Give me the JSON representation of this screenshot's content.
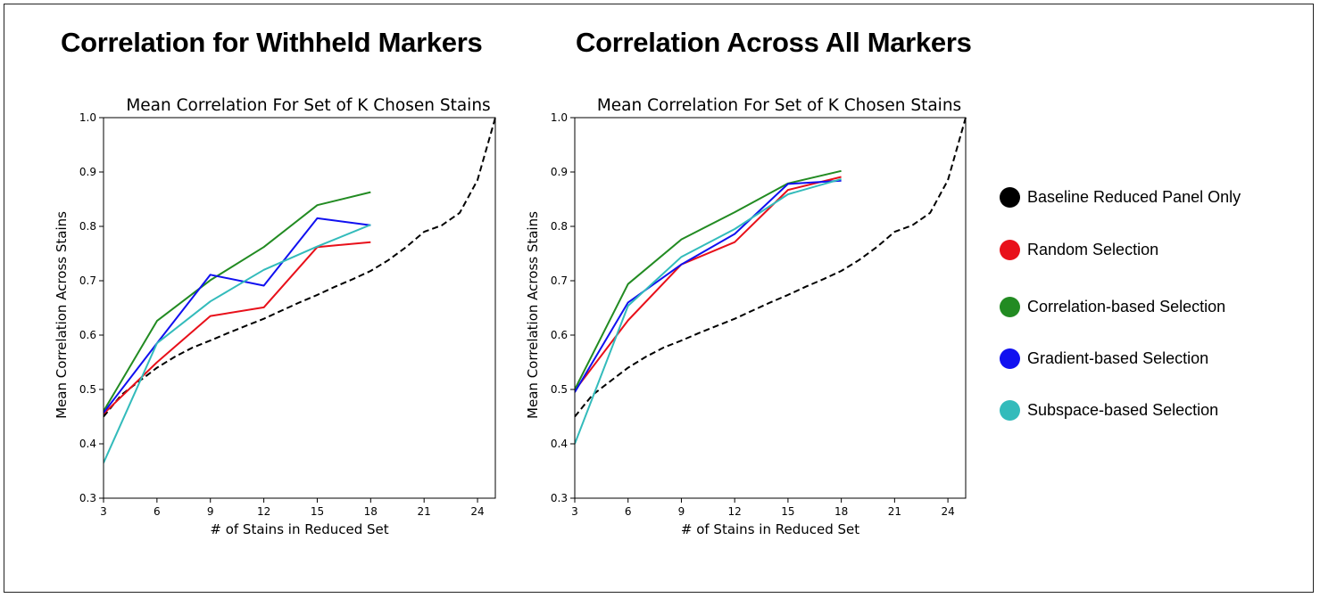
{
  "headings": {
    "left": "Correlation for Withheld Markers",
    "right": "Correlation Across All Markers"
  },
  "legend": [
    {
      "label": "Baseline Reduced Panel Only",
      "color": "#000000"
    },
    {
      "label": "Random Selection",
      "color": "#e8101a"
    },
    {
      "label": "Correlation-based Selection",
      "color": "#228b22"
    },
    {
      "label": "Gradient-based Selection",
      "color": "#1010f0"
    },
    {
      "label": "Subspace-based Selection",
      "color": "#33bbbb"
    }
  ],
  "chart_data": [
    {
      "type": "line",
      "title": "Mean Correlation For Set of K Chosen Stains",
      "xlabel": "# of Stains in Reduced Set",
      "ylabel": "Mean Correlation Across Stains",
      "xlim": [
        3,
        25
      ],
      "ylim": [
        0.3,
        1.0
      ],
      "xticks": [
        3,
        6,
        9,
        12,
        15,
        18,
        21,
        24
      ],
      "yticks": [
        0.3,
        0.4,
        0.5,
        0.6,
        0.7,
        0.8,
        0.9,
        1.0
      ],
      "series": [
        {
          "name": "Baseline Reduced Panel Only",
          "color": "#000000",
          "dashed": true,
          "x": [
            3,
            4,
            5,
            6,
            7,
            8,
            9,
            10,
            11,
            12,
            13,
            14,
            15,
            16,
            17,
            18,
            19,
            20,
            21,
            22,
            23,
            24,
            25
          ],
          "y": [
            0.45,
            0.49,
            0.515,
            0.54,
            0.56,
            0.577,
            0.59,
            0.604,
            0.617,
            0.63,
            0.645,
            0.66,
            0.674,
            0.689,
            0.703,
            0.718,
            0.738,
            0.762,
            0.79,
            0.802,
            0.825,
            0.885,
            1.0
          ]
        },
        {
          "name": "Random Selection",
          "color": "#e8101a",
          "x": [
            3,
            6,
            9,
            12,
            15,
            18
          ],
          "y": [
            0.455,
            0.55,
            0.635,
            0.651,
            0.762,
            0.771
          ]
        },
        {
          "name": "Correlation-based Selection",
          "color": "#228b22",
          "x": [
            3,
            6,
            9,
            12,
            15,
            18
          ],
          "y": [
            0.46,
            0.626,
            0.701,
            0.762,
            0.839,
            0.863
          ]
        },
        {
          "name": "Gradient-based Selection",
          "color": "#1010f0",
          "x": [
            3,
            6,
            9,
            12,
            15,
            18
          ],
          "y": [
            0.457,
            0.585,
            0.711,
            0.691,
            0.815,
            0.802
          ]
        },
        {
          "name": "Subspace-based Selection",
          "color": "#33bbbb",
          "x": [
            3,
            6,
            9,
            12,
            15,
            18
          ],
          "y": [
            0.365,
            0.585,
            0.662,
            0.72,
            0.763,
            0.803
          ]
        }
      ]
    },
    {
      "type": "line",
      "title": "Mean Correlation For Set of K Chosen Stains",
      "xlabel": "# of Stains in Reduced Set",
      "ylabel": "Mean Correlation Across Stains",
      "xlim": [
        3,
        25
      ],
      "ylim": [
        0.3,
        1.0
      ],
      "xticks": [
        3,
        6,
        9,
        12,
        15,
        18,
        21,
        24
      ],
      "yticks": [
        0.3,
        0.4,
        0.5,
        0.6,
        0.7,
        0.8,
        0.9,
        1.0
      ],
      "series": [
        {
          "name": "Baseline Reduced Panel Only",
          "color": "#000000",
          "dashed": true,
          "x": [
            3,
            4,
            5,
            6,
            7,
            8,
            9,
            10,
            11,
            12,
            13,
            14,
            15,
            16,
            17,
            18,
            19,
            20,
            21,
            22,
            23,
            24,
            25
          ],
          "y": [
            0.45,
            0.49,
            0.515,
            0.54,
            0.56,
            0.577,
            0.59,
            0.604,
            0.617,
            0.63,
            0.645,
            0.66,
            0.674,
            0.689,
            0.703,
            0.718,
            0.738,
            0.762,
            0.79,
            0.802,
            0.825,
            0.885,
            1.0
          ]
        },
        {
          "name": "Random Selection",
          "color": "#e8101a",
          "x": [
            3,
            6,
            9,
            12,
            15,
            18
          ],
          "y": [
            0.498,
            0.627,
            0.73,
            0.771,
            0.867,
            0.891
          ]
        },
        {
          "name": "Correlation-based Selection",
          "color": "#228b22",
          "x": [
            3,
            6,
            9,
            12,
            15,
            18
          ],
          "y": [
            0.5,
            0.694,
            0.776,
            0.826,
            0.879,
            0.902
          ]
        },
        {
          "name": "Gradient-based Selection",
          "color": "#1010f0",
          "x": [
            3,
            6,
            9,
            12,
            15,
            18
          ],
          "y": [
            0.495,
            0.66,
            0.73,
            0.786,
            0.878,
            0.884
          ]
        },
        {
          "name": "Subspace-based Selection",
          "color": "#33bbbb",
          "x": [
            3,
            6,
            9,
            12,
            15,
            18
          ],
          "y": [
            0.4,
            0.654,
            0.744,
            0.795,
            0.859,
            0.887
          ]
        }
      ]
    }
  ]
}
